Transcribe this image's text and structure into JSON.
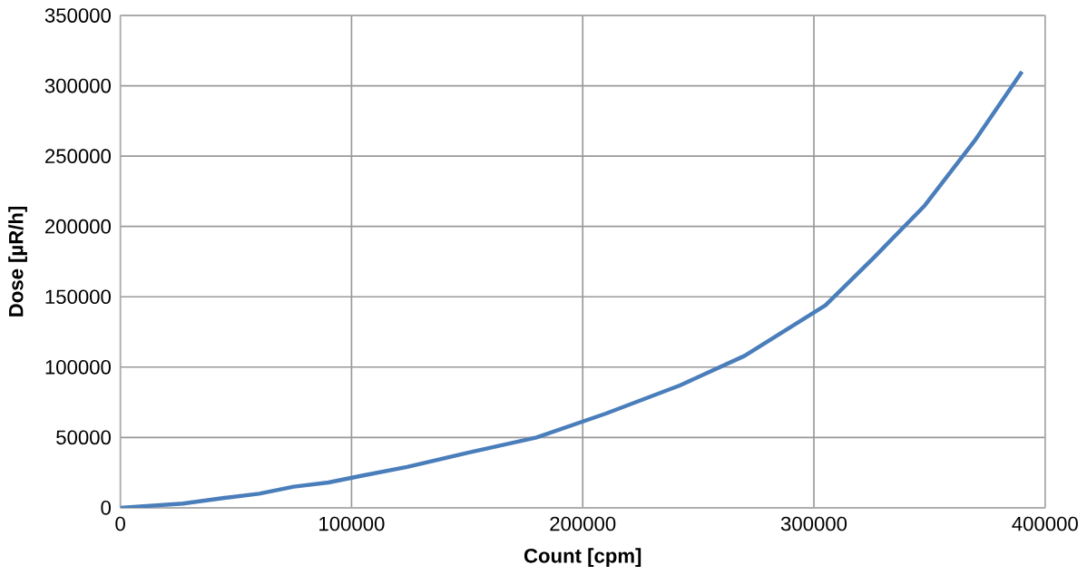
{
  "chart_data": {
    "type": "line",
    "xlabel": "Count [cpm]",
    "ylabel": "Dose [µR/h]",
    "series": [
      {
        "color": "#4a7ebb",
        "x": [
          0,
          27000,
          45000,
          60000,
          75000,
          90000,
          105000,
          124000,
          150000,
          180000,
          210000,
          242000,
          270000,
          305000,
          326000,
          348000,
          370000,
          390000
        ],
        "values": [
          0,
          3000,
          7000,
          10000,
          15000,
          18000,
          23000,
          29000,
          39000,
          50000,
          67000,
          87000,
          108000,
          144000,
          178000,
          215000,
          262000,
          310000
        ]
      }
    ],
    "xlim": [
      0,
      400000
    ],
    "xticks": [
      0,
      100000,
      200000,
      300000,
      400000
    ],
    "ylim": [
      0,
      350000
    ],
    "yticks": [
      0,
      50000,
      100000,
      150000,
      200000,
      250000,
      300000,
      350000
    ],
    "grid": true,
    "marker": "none",
    "line_style": "solid"
  }
}
